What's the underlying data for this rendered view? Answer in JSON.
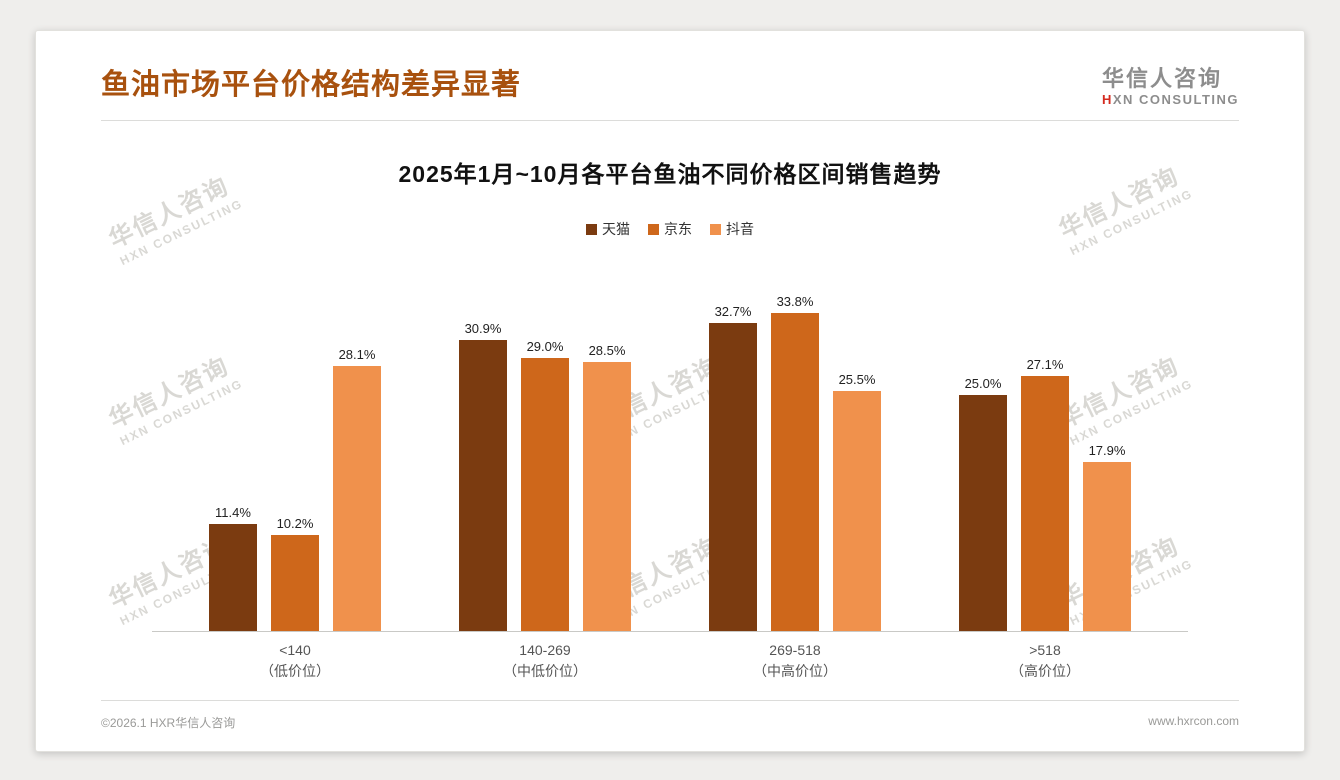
{
  "page": {
    "title": "鱼油市场平台价格结构差异显著",
    "logo": {
      "cn": "华信人咨询",
      "en_accent": "H",
      "en_rest": "XN CONSULTING"
    },
    "watermark": {
      "line1": "华信人咨询",
      "line2": "HXN CONSULTING"
    },
    "footer": {
      "left": "©2026.1 HXR华信人咨询",
      "right": "www.hxrcon.com"
    }
  },
  "chart_data": {
    "type": "bar",
    "title": "2025年1月~10月各平台鱼油不同价格区间销售趋势",
    "categories": [
      {
        "range": "<140",
        "note": "（低价位）"
      },
      {
        "range": "140-269",
        "note": "（中低价位）"
      },
      {
        "range": "269-518",
        "note": "（中高价位）"
      },
      {
        "range": ">518",
        "note": "（高价位）"
      }
    ],
    "series": [
      {
        "id": "tmall",
        "name": "天猫",
        "color": "#7b3b10",
        "values": [
          11.4,
          30.9,
          32.7,
          25.0
        ]
      },
      {
        "id": "jd",
        "name": "京东",
        "color": "#ce671b",
        "values": [
          10.2,
          29.0,
          33.8,
          27.1
        ]
      },
      {
        "id": "douyin",
        "name": "抖音",
        "color": "#f0914c",
        "values": [
          28.1,
          28.5,
          25.5,
          17.9
        ]
      }
    ],
    "ylim": [
      0,
      38
    ],
    "value_suffix": "%",
    "legend_position": "top",
    "grid": false
  }
}
